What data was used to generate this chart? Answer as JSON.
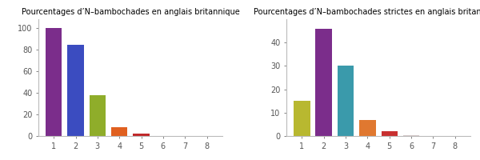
{
  "left": {
    "title": "Pourcentages d’N–bambochades en anglais britannique",
    "categories": [
      1,
      2,
      3,
      4,
      5,
      6,
      7,
      8
    ],
    "values": [
      100,
      84,
      38,
      8,
      2,
      0.3,
      0.1,
      0.05
    ],
    "colors": [
      "#7b2d8b",
      "#3b4cc0",
      "#8fad2a",
      "#e06020",
      "#c0282a",
      "#d4c8c8",
      "#d4c8c8",
      "#d4c8c8"
    ],
    "ylim": [
      0,
      108
    ],
    "yticks": [
      0,
      20,
      40,
      60,
      80,
      100
    ]
  },
  "right": {
    "title": "Pourcentages d’N–bambochades strictes en anglais britannique",
    "categories": [
      1,
      2,
      3,
      4,
      5,
      6,
      7,
      8
    ],
    "values": [
      15,
      46,
      30,
      7,
      2,
      0.3,
      0.1,
      0.05
    ],
    "colors": [
      "#b8b830",
      "#7b2d8b",
      "#3a9aab",
      "#e07830",
      "#c83030",
      "#d4c8c8",
      "#d4c8c8",
      "#d4c8c8"
    ],
    "ylim": [
      0,
      50
    ],
    "yticks": [
      0,
      10,
      20,
      30,
      40
    ]
  },
  "bg_color": "#ffffff",
  "title_fontsize": 7,
  "tick_fontsize": 7,
  "bar_width": 0.75
}
